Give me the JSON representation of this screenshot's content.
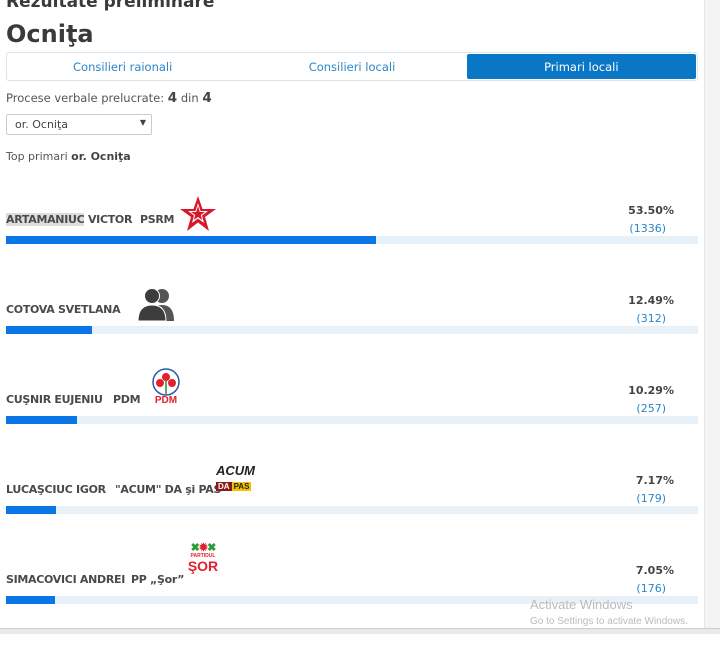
{
  "header": {
    "subtitle": "Rezultate preliminare",
    "title": "Ocniţa"
  },
  "tabs": [
    {
      "label": "Consilieri raionali",
      "active": false
    },
    {
      "label": "Consilieri locali",
      "active": false
    },
    {
      "label": "Primari locali",
      "active": true
    }
  ],
  "processed": {
    "label": "Procese verbale prelucrate:",
    "done": "4",
    "sep": "din",
    "total": "4"
  },
  "locality_select": {
    "value": "or. Ocniţa"
  },
  "top": {
    "label": "Top primari",
    "locality": "or. Ocniţa"
  },
  "candidates": [
    {
      "name": "ARTAMANIUC VICTOR",
      "party": "PSRM",
      "logo": "psrm-star-icon",
      "percent": "53.50%",
      "value": 53.5,
      "votes": "(1336)"
    },
    {
      "name": "COTOVA SVETLANA",
      "party": "",
      "logo": "independent-people-icon",
      "percent": "12.49%",
      "value": 12.49,
      "votes": "(312)"
    },
    {
      "name": "CUŞNIR EUJENIU",
      "party": "PDM",
      "logo": "pdm-roses-icon",
      "logo_text": "PDM",
      "percent": "10.29%",
      "value": 10.29,
      "votes": "(257)"
    },
    {
      "name": "LUCAŞCIUC IGOR",
      "party": "\"ACUM\" DA şi PAS",
      "logo": "acum-logo",
      "logo_text": [
        "ACUM",
        "DA",
        "PAS"
      ],
      "percent": "7.17%",
      "value": 7.17,
      "votes": "(179)"
    },
    {
      "name": "SIMACOVICI ANDREI",
      "party": "PP „Şor”",
      "logo": "sor-logo",
      "logo_text": [
        "PARTIDUL",
        "ŞOR"
      ],
      "percent": "7.05%",
      "value": 7.05,
      "votes": "(176)"
    }
  ],
  "colors": {
    "accent": "#0a76c6",
    "bar": "#0a76e6",
    "track": "#e8f0f8",
    "link": "#2b86c8"
  },
  "watermark": {
    "title": "Activate Windows",
    "subtitle": "Go to Settings to activate Windows."
  }
}
